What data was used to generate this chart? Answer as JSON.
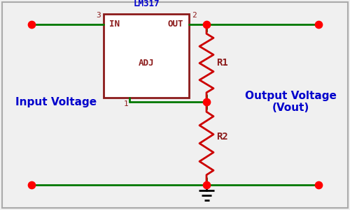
{
  "bg_color": "#f0f0f0",
  "border_color": "#aaaaaa",
  "wire_color": "#007700",
  "resistor_color": "#cc0000",
  "ic_border_color": "#8B1A1A",
  "ic_fill_color": "#ffffff",
  "dot_color": "#ff0000",
  "label_color": "#0000cc",
  "pin_label_color": "#8B1A1A",
  "title": "LM317",
  "title_color": "#0000cc",
  "input_label": "Input Voltage",
  "output_label": "Output Voltage\n(Vout)",
  "r1_label": "R1",
  "r2_label": "R2",
  "pin1_label": "1",
  "pin2_label": "2",
  "pin3_label": "3",
  "in_label": "IN",
  "out_label": "OUT",
  "adj_label": "ADJ"
}
